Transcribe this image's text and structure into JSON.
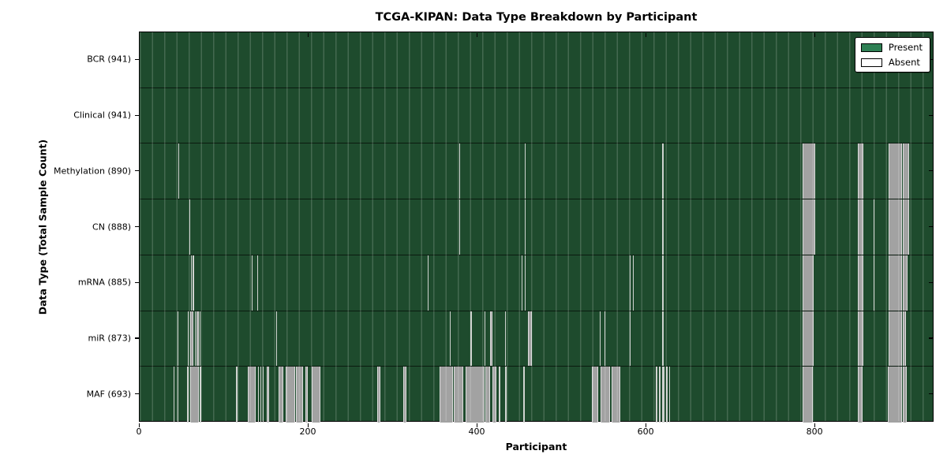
{
  "figure": {
    "title": "TCGA-KIPAN: Data Type Breakdown by Participant",
    "xlabel": "Participant",
    "ylabel": "Data Type (Total Sample Count)"
  },
  "legend": {
    "present_label": "Present",
    "absent_label": "Absent"
  },
  "colors": {
    "plot_bg": "#1e4b2d",
    "grid_stripe": "#3f7e57",
    "present_swatch": "#2e8054",
    "absent_swatch": "#ffffff",
    "absent_thin": "#cfd3cf",
    "absent_wide": "#a2a2a2",
    "absent_edge": "#dcdcdc",
    "axis": "#000000"
  },
  "chart_data": {
    "type": "heatmap",
    "title": "TCGA-KIPAN: Data Type Breakdown by Participant",
    "xlabel": "Participant",
    "ylabel": "Data Type (Total Sample Count)",
    "x_range": [
      0,
      941
    ],
    "x_ticks": [
      {
        "value": 0,
        "label": "0"
      },
      {
        "value": 200,
        "label": "200"
      },
      {
        "value": 400,
        "label": "400"
      },
      {
        "value": 600,
        "label": "600"
      },
      {
        "value": 800,
        "label": "800"
      }
    ],
    "legend_position": "upper right",
    "cell_states": [
      "Present",
      "Absent"
    ],
    "rows": [
      {
        "label": "BCR (941)",
        "name": "BCR",
        "present_count": 941,
        "absent_ranges": []
      },
      {
        "label": "Clinical (941)",
        "name": "Clinical",
        "present_count": 941,
        "absent_ranges": []
      },
      {
        "label": "Methylation (890)",
        "name": "Methylation",
        "present_count": 890,
        "absent_ranges": [
          [
            46,
            47
          ],
          [
            378,
            379
          ],
          [
            456,
            457
          ],
          [
            619,
            620
          ],
          [
            785,
            800
          ],
          [
            850,
            857
          ],
          [
            887,
            903
          ],
          [
            904,
            911
          ]
        ]
      },
      {
        "label": "CN (888)",
        "name": "CN",
        "present_count": 888,
        "absent_ranges": [
          [
            59,
            60
          ],
          [
            378,
            379
          ],
          [
            456,
            457
          ],
          [
            619,
            620
          ],
          [
            785,
            800
          ],
          [
            850,
            857
          ],
          [
            869,
            870
          ],
          [
            887,
            903
          ],
          [
            904,
            911
          ]
        ]
      },
      {
        "label": "mRNA (885)",
        "name": "mRNA",
        "present_count": 885,
        "absent_ranges": [
          [
            61,
            62
          ],
          [
            63,
            64
          ],
          [
            133,
            134
          ],
          [
            139,
            140
          ],
          [
            341,
            342
          ],
          [
            452,
            453
          ],
          [
            456,
            457
          ],
          [
            580,
            581
          ],
          [
            584,
            585
          ],
          [
            619,
            620
          ],
          [
            785,
            798
          ],
          [
            850,
            857
          ],
          [
            869,
            870
          ],
          [
            887,
            903
          ],
          [
            904,
            909
          ]
        ]
      },
      {
        "label": "miR (873)",
        "name": "miR",
        "present_count": 873,
        "absent_ranges": [
          [
            45,
            46
          ],
          [
            57,
            58
          ],
          [
            60,
            64
          ],
          [
            65,
            66
          ],
          [
            67,
            70
          ],
          [
            71,
            72
          ],
          [
            162,
            163
          ],
          [
            367,
            368
          ],
          [
            392,
            393
          ],
          [
            408,
            409
          ],
          [
            415,
            418
          ],
          [
            433,
            434
          ],
          [
            460,
            464
          ],
          [
            545,
            546
          ],
          [
            550,
            551
          ],
          [
            580,
            581
          ],
          [
            619,
            620
          ],
          [
            785,
            798
          ],
          [
            850,
            857
          ],
          [
            887,
            903
          ],
          [
            904,
            907
          ]
        ]
      },
      {
        "label": "MAF (693)",
        "name": "MAF",
        "present_count": 693,
        "absent_ranges": [
          [
            40,
            41
          ],
          [
            45,
            46
          ],
          [
            56,
            58
          ],
          [
            60,
            70
          ],
          [
            71,
            73
          ],
          [
            114,
            116
          ],
          [
            128,
            137
          ],
          [
            140,
            141
          ],
          [
            143,
            144
          ],
          [
            146,
            147
          ],
          [
            150,
            153
          ],
          [
            164,
            170
          ],
          [
            173,
            184
          ],
          [
            185,
            193
          ],
          [
            196,
            199
          ],
          [
            204,
            214
          ],
          [
            281,
            285
          ],
          [
            312,
            316
          ],
          [
            355,
            371
          ],
          [
            372,
            383
          ],
          [
            386,
            408
          ],
          [
            409,
            415
          ],
          [
            418,
            422
          ],
          [
            425,
            427
          ],
          [
            433,
            435
          ],
          [
            454,
            456
          ],
          [
            535,
            543
          ],
          [
            546,
            557
          ],
          [
            559,
            569
          ],
          [
            611,
            613
          ],
          [
            615,
            617
          ],
          [
            619,
            621
          ],
          [
            623,
            625
          ],
          [
            627,
            628
          ],
          [
            785,
            797
          ],
          [
            850,
            856
          ],
          [
            886,
            903
          ],
          [
            904,
            908
          ]
        ]
      }
    ]
  }
}
